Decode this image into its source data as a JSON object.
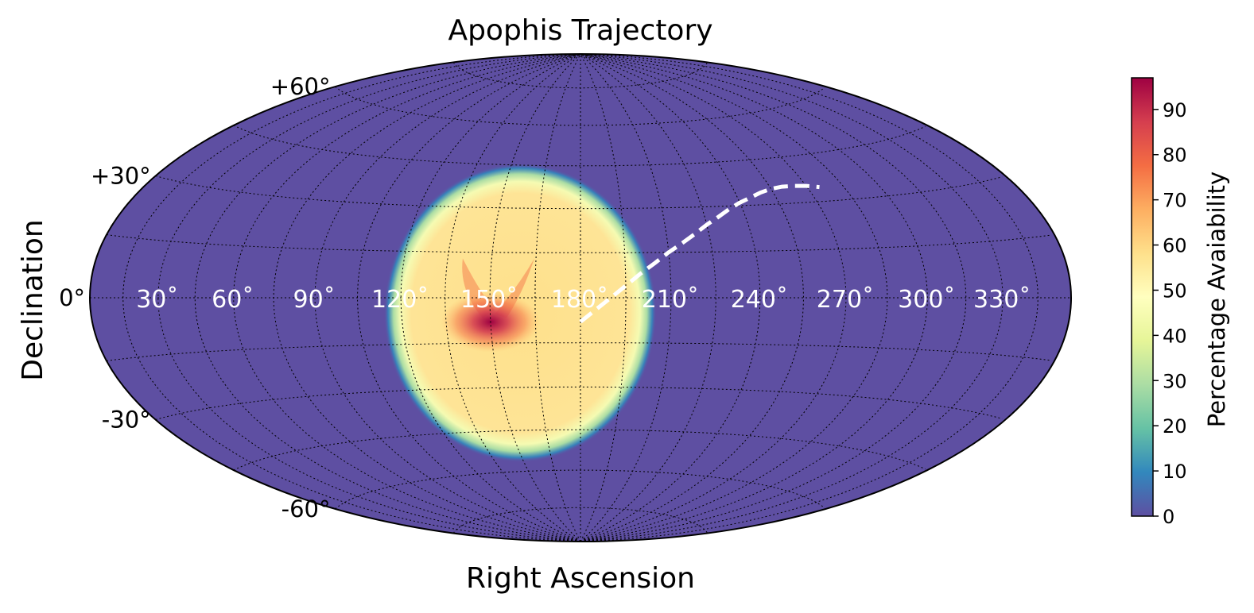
{
  "chart_data": {
    "type": "heatmap",
    "projection": "hammer",
    "title": "Apophis Trajectory",
    "xlabel": "Right Ascension",
    "ylabel": "Declination",
    "ra_tick_labels": [
      "30˚",
      "60˚",
      "90˚",
      "120˚",
      "150˚",
      "180˚",
      "210˚",
      "240˚",
      "270˚",
      "300˚",
      "330˚"
    ],
    "ra_ticks": [
      30,
      60,
      90,
      120,
      150,
      180,
      210,
      240,
      270,
      300,
      330
    ],
    "dec_tick_labels": [
      "+60°",
      "+30°",
      "0°",
      "-30°",
      "-60°"
    ],
    "dec_ticks": [
      60,
      30,
      0,
      -30,
      -60
    ],
    "grid": true,
    "background_color": "#5e4fa2",
    "availability_region": {
      "center_ra": 160,
      "center_dec": -5,
      "radius_deg": 40,
      "peak_ra": 150,
      "peak_dec": -8,
      "peak_value": 95,
      "plateau_value": 57
    },
    "trajectory": {
      "style": "dashed",
      "color": "#ffffff",
      "ra": [
        180,
        185,
        190,
        195,
        200,
        205,
        210,
        215,
        220,
        225,
        230,
        235,
        240,
        245,
        250,
        255,
        260,
        265,
        270,
        275
      ],
      "dec": [
        -8,
        -4,
        0,
        4,
        8,
        11.5,
        15,
        18,
        21,
        24,
        26.5,
        29,
        31,
        32.5,
        34,
        35,
        35.5,
        35.5,
        35.2,
        34.5
      ]
    },
    "colorbar": {
      "label": "Percentage Avaiability",
      "min": 0,
      "max": 97,
      "ticks": [
        0,
        10,
        20,
        30,
        40,
        50,
        60,
        70,
        80,
        90
      ],
      "tick_labels": [
        "0",
        "10",
        "20",
        "30",
        "40",
        "50",
        "60",
        "70",
        "80",
        "90"
      ],
      "colormap": "Spectral_r",
      "placement": "right"
    }
  }
}
